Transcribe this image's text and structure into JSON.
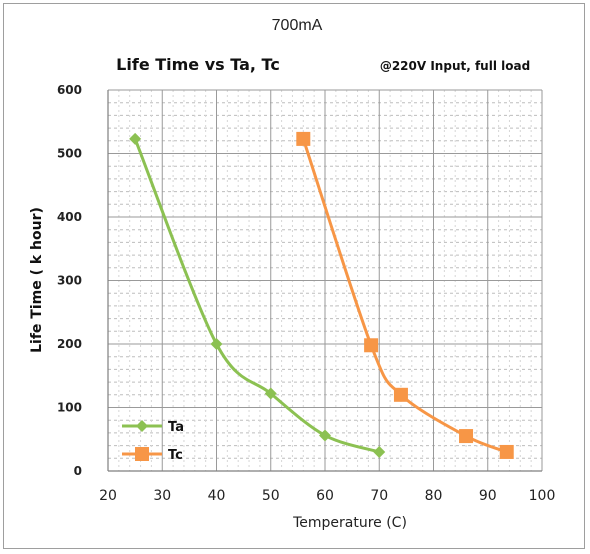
{
  "chart_data": {
    "type": "line",
    "header": "700mA",
    "title": "Life Time vs Ta, Tc",
    "subtitle": "@220V Input, full load",
    "xlabel": "Temperature (C)",
    "ylabel": "Life Time ( k hour)",
    "xlim": [
      20,
      100
    ],
    "ylim": [
      0,
      600
    ],
    "x_ticks": [
      "20",
      "30",
      "40",
      "50",
      "60",
      "70",
      "80",
      "90",
      "100"
    ],
    "y_ticks": [
      "0",
      "100",
      "200",
      "300",
      "400",
      "500",
      "600"
    ],
    "grid": true,
    "legend_position": "bottom-left",
    "series": [
      {
        "name": "Ta",
        "color": "#8cc152",
        "marker": "diamond",
        "x": [
          25,
          40,
          50,
          60,
          70
        ],
        "y": [
          523,
          200,
          122,
          56,
          30
        ]
      },
      {
        "name": "Tc",
        "color": "#f79646",
        "marker": "square",
        "x": [
          56,
          68.5,
          74,
          86,
          93.5
        ],
        "y": [
          523,
          198,
          120,
          55,
          30
        ]
      }
    ]
  }
}
